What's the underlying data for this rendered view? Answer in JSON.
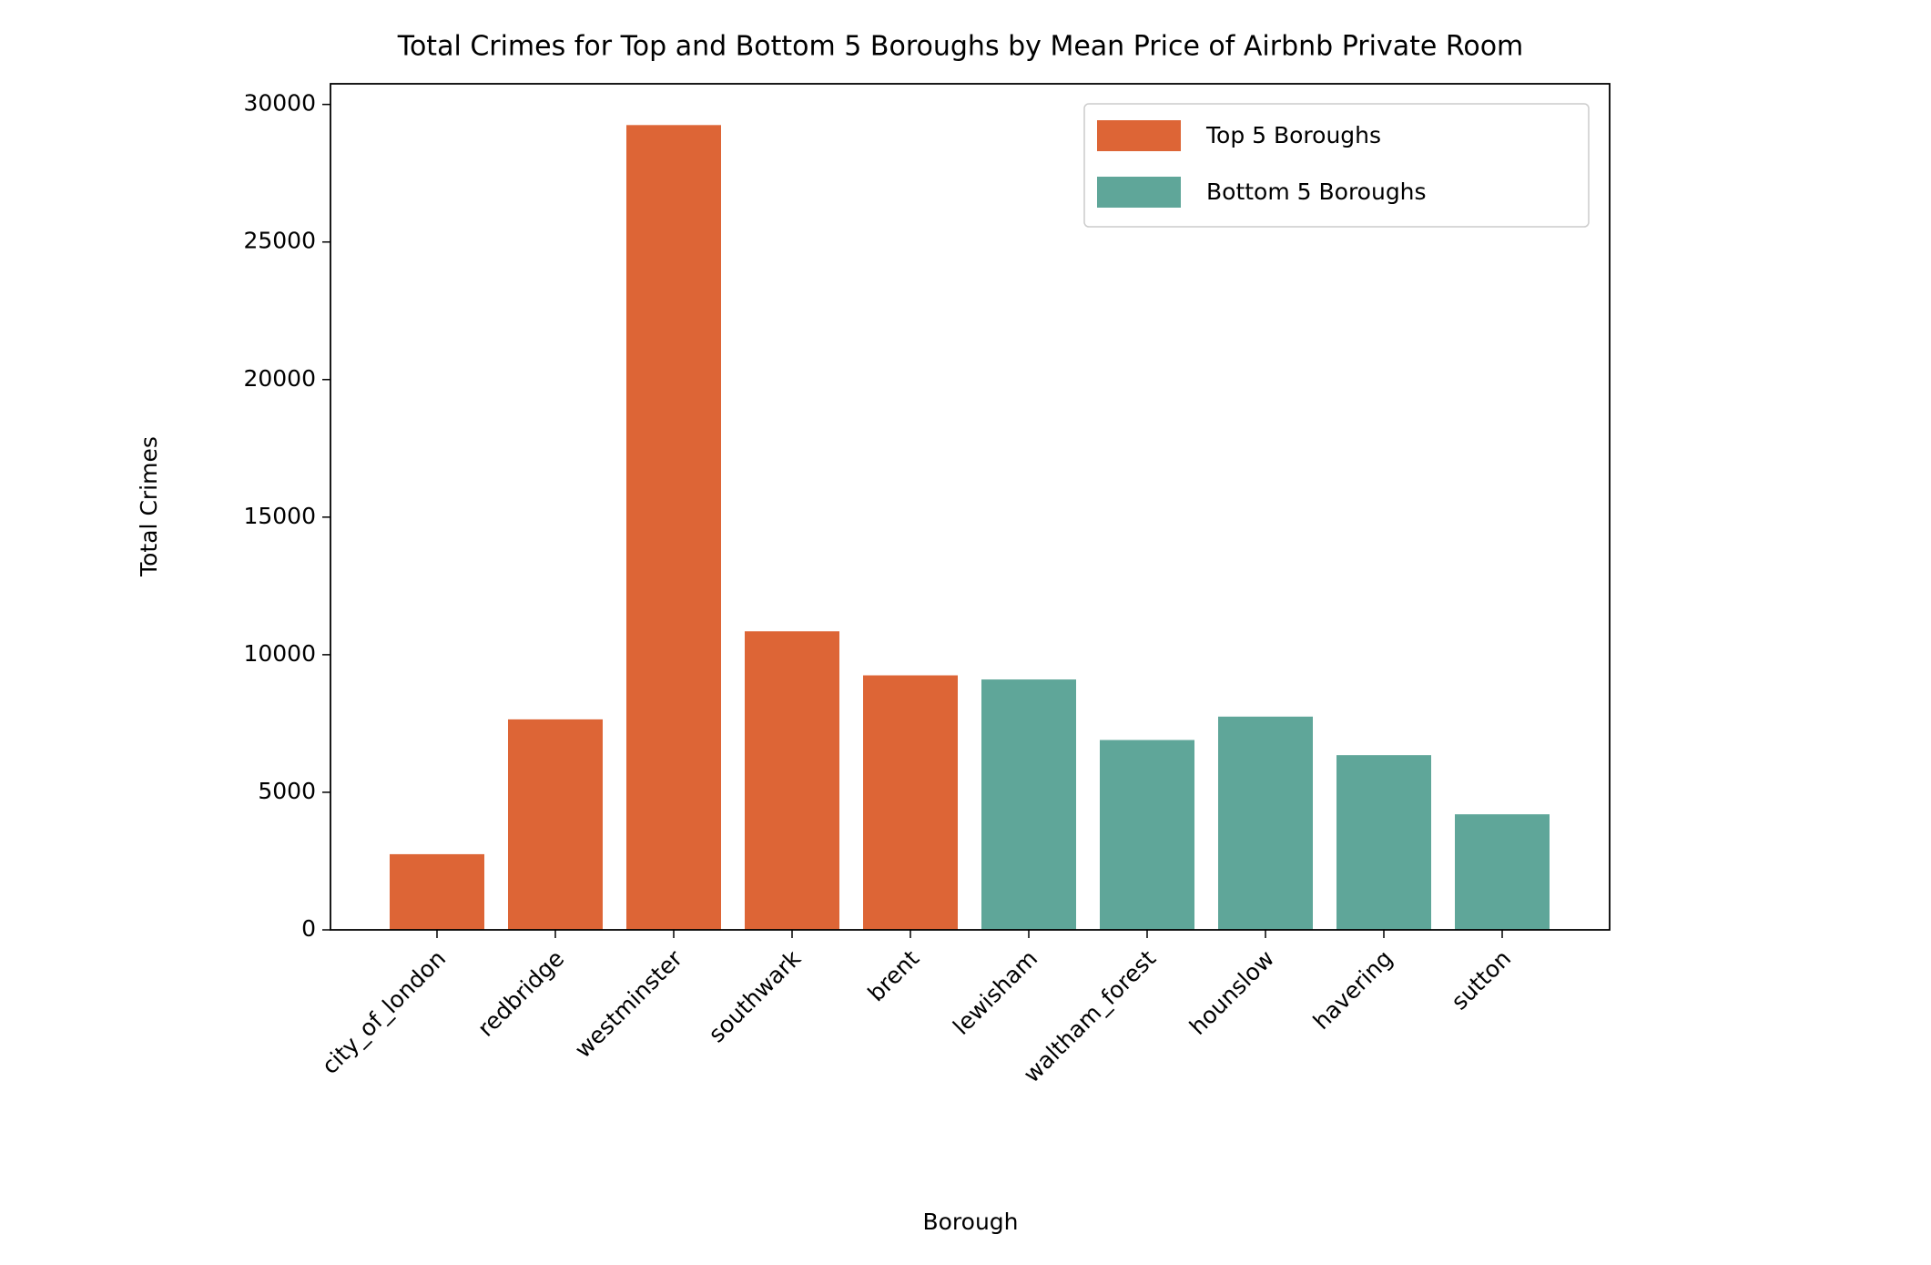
{
  "chart_data": {
    "type": "bar",
    "title": "Total Crimes for Top and Bottom 5 Boroughs by Mean Price of Airbnb Private Room",
    "x_label": "Borough",
    "y_label": "Total Crimes",
    "categories": [
      "city_of_london",
      "redbridge",
      "westminster",
      "southwark",
      "brent",
      "lewisham",
      "waltham_forest",
      "hounslow",
      "havering",
      "sutton"
    ],
    "series": [
      {
        "name": "Top 5 Boroughs",
        "color": "#dd6536",
        "values": [
          2750,
          7650,
          29250,
          10850,
          9250,
          null,
          null,
          null,
          null,
          null
        ]
      },
      {
        "name": "Bottom 5 Boroughs",
        "color": "#5fa699",
        "values": [
          null,
          null,
          null,
          null,
          null,
          9100,
          6900,
          7750,
          6350,
          4200
        ]
      }
    ],
    "ylim": [
      0,
      30750
    ],
    "yticks": [
      0,
      5000,
      10000,
      15000,
      20000,
      25000,
      30000
    ],
    "legend": "upper right",
    "grid": false
  }
}
